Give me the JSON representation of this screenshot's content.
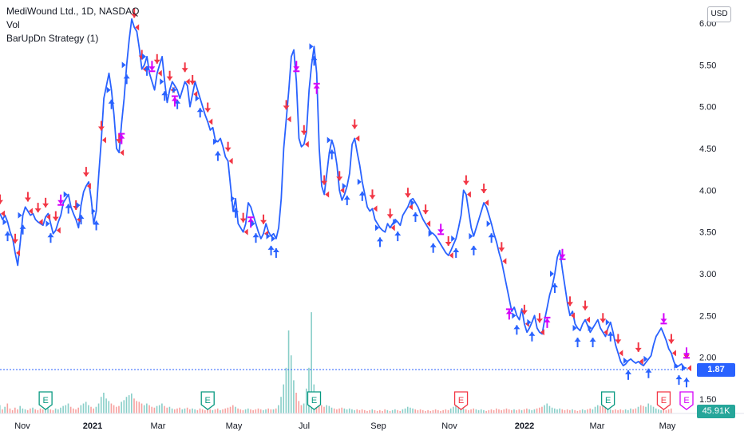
{
  "legend": {
    "title": "MediWound Ltd., 1D, NASDAQ",
    "vol": "Vol",
    "strategy": "BarUpDn Strategy (1)"
  },
  "currency": "USD",
  "last_price_label": "1.87",
  "volume_label": "45.91K",
  "colors": {
    "line": "#2962ff",
    "up_arrow": "#2962ff",
    "down_arrow": "#f23645",
    "exit_marker": "#d500f9",
    "vol_up": "#26a69a",
    "vol_down": "#ef5350",
    "earnings_green": "#089981",
    "earnings_red": "#f23645",
    "earnings_purple": "#d500f9"
  },
  "chart_data": {
    "type": "line",
    "y_axis": {
      "ticks": [
        "6.00",
        "5.50",
        "5.00",
        "4.50",
        "4.00",
        "3.50",
        "3.00",
        "2.50",
        "2.00",
        "1.50"
      ],
      "ylim": [
        1.45,
        6.1
      ]
    },
    "x_axis": {
      "ticks": [
        {
          "label": "Nov",
          "bold": false
        },
        {
          "label": "2021",
          "bold": true
        },
        {
          "label": "Mar",
          "bold": false
        },
        {
          "label": "May",
          "bold": false
        },
        {
          "label": "Jul",
          "bold": false
        },
        {
          "label": "Sep",
          "bold": false
        },
        {
          "label": "Nov",
          "bold": false
        },
        {
          "label": "2022",
          "bold": true
        },
        {
          "label": "Mar",
          "bold": false
        },
        {
          "label": "May",
          "bold": false
        }
      ]
    },
    "series": [
      {
        "values": [
          3.72,
          3.65,
          3.7,
          3.62,
          3.5,
          3.42,
          3.25,
          3.1,
          3.38,
          3.7,
          3.8,
          3.75,
          3.7,
          3.72,
          3.65,
          3.62,
          3.6,
          3.58,
          3.68,
          3.72,
          3.6,
          3.48,
          3.52,
          3.62,
          3.7,
          3.85,
          3.9,
          3.95,
          3.8,
          3.72,
          3.65,
          3.55,
          3.82,
          3.98,
          4.05,
          4.1,
          3.9,
          3.6,
          3.75,
          4.2,
          4.6,
          5.1,
          5.25,
          5.4,
          5.2,
          4.9,
          4.5,
          4.45,
          4.8,
          5.1,
          5.5,
          5.8,
          6.05,
          5.95,
          5.9,
          5.7,
          5.45,
          5.5,
          5.6,
          5.4,
          5.3,
          5.2,
          5.4,
          5.5,
          5.6,
          5.3,
          5.05,
          5.2,
          5.3,
          5.25,
          5.2,
          5.1,
          5.2,
          5.3,
          5.25,
          5.0,
          5.15,
          5.3,
          5.2,
          5.1,
          5.0,
          4.9,
          4.82,
          4.72,
          4.75,
          4.6,
          4.58,
          4.62,
          4.52,
          4.4,
          4.35,
          4.05,
          3.75,
          3.9,
          3.6,
          3.55,
          3.5,
          3.6,
          3.85,
          3.8,
          3.7,
          3.6,
          3.5,
          3.42,
          3.48,
          3.6,
          3.5,
          3.45,
          3.48,
          3.42,
          3.55,
          3.9,
          4.5,
          4.85,
          5.2,
          5.6,
          5.68,
          5.3,
          4.62,
          4.52,
          4.55,
          4.7,
          5.2,
          5.5,
          5.72,
          5.4,
          4.5,
          4.05,
          3.95,
          4.2,
          4.45,
          4.6,
          4.5,
          4.3,
          4.0,
          3.88,
          3.95,
          4.05,
          4.2,
          4.55,
          4.62,
          4.45,
          4.3,
          4.1,
          3.95,
          3.8,
          3.75,
          3.78,
          3.65,
          3.6,
          3.55,
          3.52,
          3.5,
          3.6,
          3.55,
          3.6,
          3.65,
          3.62,
          3.58,
          3.7,
          3.75,
          3.8,
          3.88,
          3.9,
          3.85,
          3.8,
          3.72,
          3.65,
          3.6,
          3.55,
          3.5,
          3.48,
          3.45,
          3.4,
          3.35,
          3.3,
          3.25,
          3.22,
          3.28,
          3.35,
          3.42,
          3.55,
          3.7,
          4.0,
          3.95,
          3.75,
          3.55,
          3.45,
          3.55,
          3.65,
          3.75,
          3.85,
          3.8,
          3.7,
          3.6,
          3.48,
          3.38,
          3.25,
          3.15,
          3.0,
          2.85,
          2.7,
          2.55,
          2.6,
          2.5,
          2.45,
          2.58,
          2.4,
          2.3,
          2.35,
          2.42,
          2.5,
          2.35,
          2.3,
          2.28,
          2.45,
          2.6,
          2.75,
          2.85,
          3.0,
          3.2,
          3.28,
          3.05,
          2.85,
          2.65,
          2.5,
          2.55,
          2.4,
          2.35,
          2.32,
          2.4,
          2.45,
          2.38,
          2.3,
          2.35,
          2.4,
          2.45,
          2.35,
          2.3,
          2.25,
          2.35,
          2.42,
          2.3,
          2.15,
          2.05,
          1.95,
          1.9,
          1.92,
          1.96,
          1.98,
          1.95,
          1.93,
          1.95,
          1.92,
          1.9,
          1.94,
          1.98,
          2.02,
          2.15,
          2.25,
          2.3,
          2.35,
          2.28,
          2.2,
          2.1,
          2.05,
          1.95,
          1.88,
          1.9,
          1.92,
          1.88,
          1.87
        ]
      }
    ],
    "volume": [
      0.1,
      0.05,
      0.08,
      0.12,
      0.06,
      0.04,
      0.07,
      0.05,
      0.09,
      0.06,
      0.05,
      0.04,
      0.06,
      0.07,
      0.05,
      0.04,
      0.06,
      0.05,
      0.08,
      0.06,
      0.05,
      0.04,
      0.06,
      0.05,
      0.07,
      0.09,
      0.1,
      0.12,
      0.08,
      0.06,
      0.05,
      0.07,
      0.1,
      0.12,
      0.14,
      0.1,
      0.08,
      0.06,
      0.08,
      0.12,
      0.2,
      0.25,
      0.18,
      0.15,
      0.12,
      0.1,
      0.08,
      0.09,
      0.14,
      0.16,
      0.2,
      0.22,
      0.24,
      0.18,
      0.15,
      0.14,
      0.12,
      0.1,
      0.12,
      0.1,
      0.08,
      0.07,
      0.09,
      0.1,
      0.12,
      0.09,
      0.07,
      0.08,
      0.06,
      0.05,
      0.06,
      0.07,
      0.05,
      0.06,
      0.07,
      0.05,
      0.06,
      0.05,
      0.04,
      0.06,
      0.05,
      0.04,
      0.06,
      0.05,
      0.04,
      0.05,
      0.06,
      0.04,
      0.05,
      0.06,
      0.07,
      0.08,
      0.1,
      0.08,
      0.06,
      0.05,
      0.04,
      0.05,
      0.06,
      0.05,
      0.04,
      0.05,
      0.06,
      0.05,
      0.04,
      0.05,
      0.06,
      0.05,
      0.05,
      0.06,
      0.1,
      0.2,
      0.35,
      0.55,
      1.0,
      0.7,
      0.4,
      0.25,
      0.15,
      0.1,
      0.12,
      0.3,
      0.55,
      1.22,
      0.35,
      0.2,
      0.12,
      0.1,
      0.08,
      0.1,
      0.09,
      0.07,
      0.06,
      0.05,
      0.06,
      0.07,
      0.06,
      0.05,
      0.06,
      0.05,
      0.04,
      0.05,
      0.04,
      0.05,
      0.04,
      0.03,
      0.04,
      0.05,
      0.04,
      0.03,
      0.04,
      0.03,
      0.05,
      0.04,
      0.03,
      0.04,
      0.05,
      0.04,
      0.03,
      0.05,
      0.06,
      0.08,
      0.07,
      0.06,
      0.05,
      0.04,
      0.05,
      0.04,
      0.03,
      0.04,
      0.03,
      0.04,
      0.05,
      0.04,
      0.03,
      0.04,
      0.05,
      0.04,
      0.06,
      0.08,
      0.12,
      0.1,
      0.07,
      0.06,
      0.05,
      0.04,
      0.05,
      0.06,
      0.05,
      0.04,
      0.05,
      0.04,
      0.03,
      0.04,
      0.05,
      0.04,
      0.06,
      0.05,
      0.04,
      0.05,
      0.06,
      0.05,
      0.04,
      0.05,
      0.04,
      0.05,
      0.04,
      0.05,
      0.06,
      0.05,
      0.04,
      0.05,
      0.06,
      0.07,
      0.08,
      0.1,
      0.12,
      0.09,
      0.07,
      0.06,
      0.05,
      0.06,
      0.05,
      0.04,
      0.05,
      0.04,
      0.05,
      0.04,
      0.03,
      0.04,
      0.05,
      0.04,
      0.05,
      0.06,
      0.05,
      0.08,
      0.1,
      0.09,
      0.12,
      0.08,
      0.06,
      0.05,
      0.04,
      0.05,
      0.04,
      0.05,
      0.04,
      0.05,
      0.04,
      0.06,
      0.05,
      0.06,
      0.08,
      0.1,
      0.09,
      0.08,
      0.12,
      0.1,
      0.08,
      0.06,
      0.05,
      0.04,
      0.05,
      0.04,
      0.05,
      0.06
    ],
    "markers": [
      {
        "type": "buy",
        "i": 3
      },
      {
        "type": "sell",
        "i": 0
      },
      {
        "type": "sell",
        "i": 6
      },
      {
        "type": "buy",
        "i": 9
      },
      {
        "type": "sell",
        "i": 11
      },
      {
        "type": "sell",
        "i": 15
      },
      {
        "type": "sell",
        "i": 18
      },
      {
        "type": "buy",
        "i": 20
      },
      {
        "type": "sell",
        "i": 22
      },
      {
        "type": "buy",
        "i": 27
      },
      {
        "type": "sell",
        "i": 30
      },
      {
        "type": "buy",
        "i": 32
      },
      {
        "type": "sell",
        "i": 34
      },
      {
        "type": "exit_short",
        "i": 24
      },
      {
        "type": "buy",
        "i": 38
      },
      {
        "type": "sell",
        "i": 40
      },
      {
        "type": "buy",
        "i": 44
      },
      {
        "type": "sell",
        "i": 47
      },
      {
        "type": "buy",
        "i": 50
      },
      {
        "type": "sell",
        "i": 53
      },
      {
        "type": "exit_long",
        "i": 48
      },
      {
        "type": "sell",
        "i": 56
      },
      {
        "type": "buy",
        "i": 58
      },
      {
        "type": "exit_short",
        "i": 60
      },
      {
        "type": "sell",
        "i": 62
      },
      {
        "type": "buy",
        "i": 65
      },
      {
        "type": "sell",
        "i": 67
      },
      {
        "type": "buy",
        "i": 70
      },
      {
        "type": "sell",
        "i": 73
      },
      {
        "type": "exit_long",
        "i": 69
      },
      {
        "type": "sell",
        "i": 76
      },
      {
        "type": "buy",
        "i": 79
      },
      {
        "type": "sell",
        "i": 82
      },
      {
        "type": "buy",
        "i": 86
      },
      {
        "type": "sell",
        "i": 90
      },
      {
        "type": "buy",
        "i": 93
      },
      {
        "type": "sell",
        "i": 96
      },
      {
        "type": "exit_long",
        "i": 99
      },
      {
        "type": "buy",
        "i": 101
      },
      {
        "type": "sell",
        "i": 104
      },
      {
        "type": "buy",
        "i": 107
      },
      {
        "type": "buy",
        "i": 109
      },
      {
        "type": "sell",
        "i": 113
      },
      {
        "type": "exit_short",
        "i": 117
      },
      {
        "type": "sell",
        "i": 120
      },
      {
        "type": "buy",
        "i": 124
      },
      {
        "type": "exit_long",
        "i": 125
      },
      {
        "type": "sell",
        "i": 128
      },
      {
        "type": "buy",
        "i": 131
      },
      {
        "type": "sell",
        "i": 134
      },
      {
        "type": "buy",
        "i": 137
      },
      {
        "type": "sell",
        "i": 140
      },
      {
        "type": "buy",
        "i": 143
      },
      {
        "type": "sell",
        "i": 147
      },
      {
        "type": "buy",
        "i": 150
      },
      {
        "type": "sell",
        "i": 154
      },
      {
        "type": "buy",
        "i": 157
      },
      {
        "type": "sell",
        "i": 161
      },
      {
        "type": "buy",
        "i": 164
      },
      {
        "type": "sell",
        "i": 168
      },
      {
        "type": "buy",
        "i": 171
      },
      {
        "type": "exit_short",
        "i": 174
      },
      {
        "type": "sell",
        "i": 177
      },
      {
        "type": "buy",
        "i": 180
      },
      {
        "type": "sell",
        "i": 184
      },
      {
        "type": "buy",
        "i": 187
      },
      {
        "type": "sell",
        "i": 191
      },
      {
        "type": "buy",
        "i": 194
      },
      {
        "type": "sell",
        "i": 198
      },
      {
        "type": "exit_long",
        "i": 201
      },
      {
        "type": "buy",
        "i": 204
      },
      {
        "type": "sell",
        "i": 207
      },
      {
        "type": "buy",
        "i": 210
      },
      {
        "type": "sell",
        "i": 213
      },
      {
        "type": "exit_long",
        "i": 216
      },
      {
        "type": "buy",
        "i": 219
      },
      {
        "type": "exit_short",
        "i": 222
      },
      {
        "type": "sell",
        "i": 225
      },
      {
        "type": "buy",
        "i": 228
      },
      {
        "type": "sell",
        "i": 231
      },
      {
        "type": "buy",
        "i": 234
      },
      {
        "type": "sell",
        "i": 238
      },
      {
        "type": "buy",
        "i": 241
      },
      {
        "type": "sell",
        "i": 244
      },
      {
        "type": "buy",
        "i": 248
      },
      {
        "type": "sell",
        "i": 252
      },
      {
        "type": "buy",
        "i": 256
      },
      {
        "type": "exit_short",
        "i": 262
      },
      {
        "type": "sell",
        "i": 265
      },
      {
        "type": "buy",
        "i": 268
      },
      {
        "type": "sell",
        "i": 272
      },
      {
        "type": "buy",
        "i": 275
      },
      {
        "type": "exit_short",
        "i": 279
      }
    ],
    "earnings": [
      {
        "i": 18,
        "color": "green"
      },
      {
        "i": 82,
        "color": "green"
      },
      {
        "i": 124,
        "color": "green"
      },
      {
        "i": 182,
        "color": "red"
      },
      {
        "i": 240,
        "color": "green"
      },
      {
        "i": 262,
        "color": "red"
      },
      {
        "i": 282,
        "color": "purple"
      }
    ]
  }
}
